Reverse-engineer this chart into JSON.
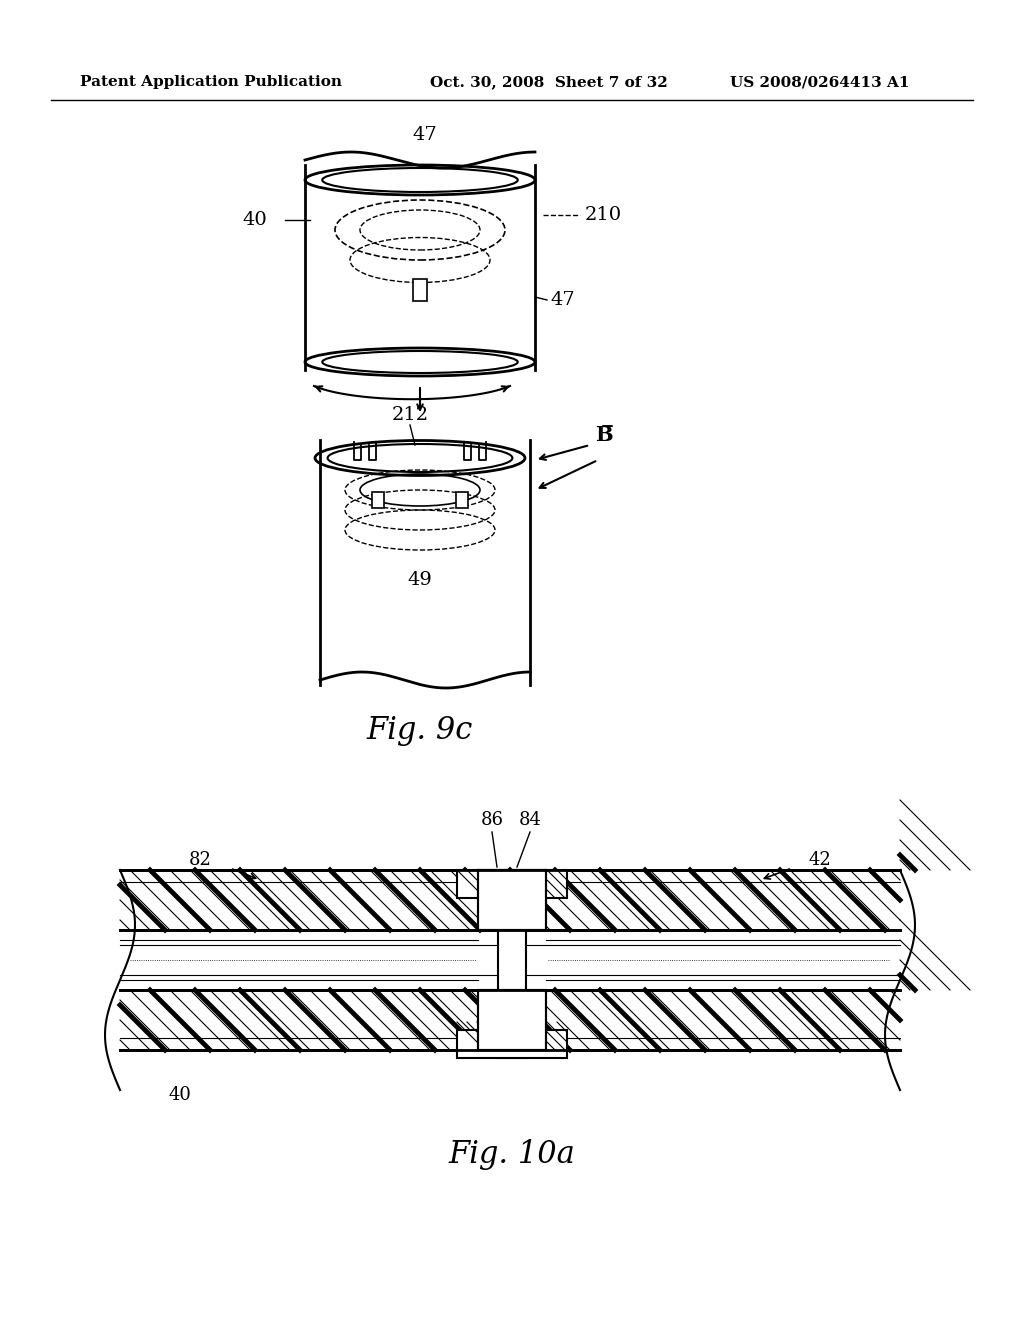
{
  "bg_color": "#ffffff",
  "header_left": "Patent Application Publication",
  "header_center": "Oct. 30, 2008  Sheet 7 of 32",
  "header_right": "US 2008/0264413 A1",
  "fig9c_label": "Fig. 9c",
  "fig10a_label": "Fig. 10a",
  "labels": {
    "47_top": "47",
    "40": "40",
    "210": "210",
    "47_bot": "47",
    "212": "212",
    "B_bar": "B̅",
    "49": "49",
    "86": "86",
    "84": "84",
    "82": "82",
    "42": "42",
    "40_bot": "40"
  }
}
